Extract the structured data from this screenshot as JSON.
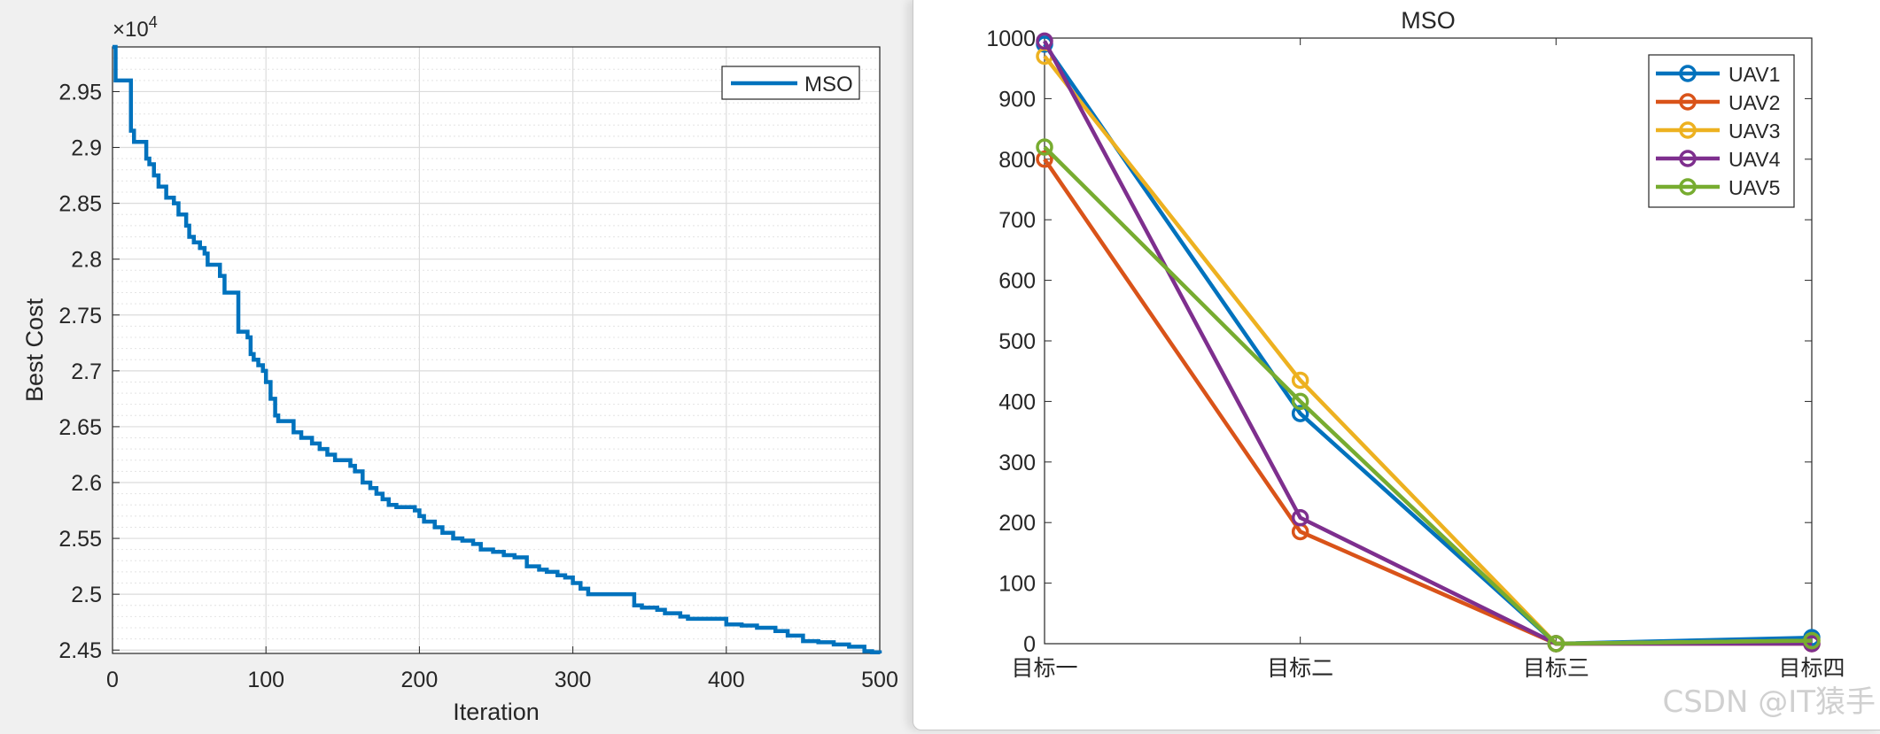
{
  "chart_data": [
    {
      "type": "line",
      "title": "",
      "xlabel": "Iteration",
      "ylabel": "Best Cost",
      "y_exponent_label": "×10",
      "y_exponent": "4",
      "xlim": [
        0,
        500
      ],
      "ylim": [
        2.447,
        2.99
      ],
      "xticks": [
        0,
        100,
        200,
        300,
        400,
        500
      ],
      "xtick_labels": [
        "0",
        "100",
        "200",
        "300",
        "400",
        "500"
      ],
      "yticks": [
        2.45,
        2.5,
        2.55,
        2.6,
        2.65,
        2.7,
        2.75,
        2.8,
        2.85,
        2.9,
        2.95
      ],
      "ytick_labels": [
        "2.45",
        "2.5",
        "2.55",
        "2.6",
        "2.65",
        "2.7",
        "2.75",
        "2.8",
        "2.85",
        "2.9",
        "2.95"
      ],
      "grid": true,
      "minor_grid_y": true,
      "legend_position": "top-right",
      "series": [
        {
          "name": "MSO",
          "color": "#0072bd",
          "step": true,
          "x": [
            0,
            2,
            12,
            14,
            18,
            22,
            24,
            27,
            30,
            35,
            40,
            43,
            48,
            50,
            53,
            57,
            60,
            62,
            65,
            70,
            73,
            76,
            79,
            82,
            85,
            88,
            90,
            92,
            95,
            98,
            100,
            103,
            106,
            108,
            112,
            118,
            123,
            127,
            130,
            135,
            140,
            145,
            150,
            155,
            158,
            163,
            168,
            172,
            176,
            180,
            185,
            190,
            197,
            200,
            203,
            210,
            215,
            222,
            228,
            235,
            240,
            248,
            255,
            262,
            270,
            278,
            283,
            290,
            295,
            300,
            305,
            310,
            320,
            330,
            340,
            345,
            350,
            355,
            360,
            370,
            375,
            385,
            395,
            400,
            405,
            410,
            420,
            432,
            440,
            450,
            460,
            470,
            480,
            490,
            495,
            500
          ],
          "y": [
            2.99,
            2.96,
            2.915,
            2.905,
            2.905,
            2.89,
            2.885,
            2.875,
            2.865,
            2.855,
            2.85,
            2.84,
            2.83,
            2.82,
            2.815,
            2.81,
            2.805,
            2.795,
            2.795,
            2.785,
            2.77,
            2.77,
            2.77,
            2.735,
            2.735,
            2.73,
            2.715,
            2.71,
            2.705,
            2.7,
            2.69,
            2.675,
            2.66,
            2.655,
            2.655,
            2.645,
            2.64,
            2.64,
            2.635,
            2.63,
            2.625,
            2.62,
            2.62,
            2.615,
            2.61,
            2.6,
            2.595,
            2.59,
            2.585,
            2.58,
            2.578,
            2.578,
            2.575,
            2.57,
            2.565,
            2.56,
            2.555,
            2.55,
            2.548,
            2.545,
            2.54,
            2.538,
            2.535,
            2.533,
            2.525,
            2.522,
            2.52,
            2.517,
            2.515,
            2.51,
            2.505,
            2.5,
            2.5,
            2.5,
            2.49,
            2.488,
            2.488,
            2.486,
            2.483,
            2.48,
            2.478,
            2.478,
            2.478,
            2.473,
            2.473,
            2.472,
            2.47,
            2.467,
            2.463,
            2.458,
            2.457,
            2.455,
            2.453,
            2.449,
            2.448,
            2.447
          ]
        }
      ]
    },
    {
      "type": "line",
      "title": "MSO",
      "xlabel": "",
      "ylabel": "",
      "categories": [
        "目标一",
        "目标二",
        "目标三",
        "目标四"
      ],
      "ylim": [
        0,
        1000
      ],
      "yticks": [
        0,
        100,
        200,
        300,
        400,
        500,
        600,
        700,
        800,
        900,
        1000
      ],
      "ytick_labels": [
        "0",
        "100",
        "200",
        "300",
        "400",
        "500",
        "600",
        "700",
        "800",
        "900",
        "1000"
      ],
      "grid": false,
      "legend_position": "top-right",
      "marker": "circle",
      "series": [
        {
          "name": "UAV1",
          "color": "#0072bd",
          "values": [
            990,
            380,
            0,
            10
          ]
        },
        {
          "name": "UAV2",
          "color": "#d95319",
          "values": [
            800,
            185,
            0,
            0
          ]
        },
        {
          "name": "UAV3",
          "color": "#edb120",
          "values": [
            970,
            435,
            0,
            5
          ]
        },
        {
          "name": "UAV4",
          "color": "#7e2f8e",
          "values": [
            995,
            208,
            0,
            0
          ]
        },
        {
          "name": "UAV5",
          "color": "#77ac30",
          "values": [
            820,
            400,
            0,
            5
          ]
        }
      ]
    }
  ],
  "watermark": "CSDN @IT猿手"
}
